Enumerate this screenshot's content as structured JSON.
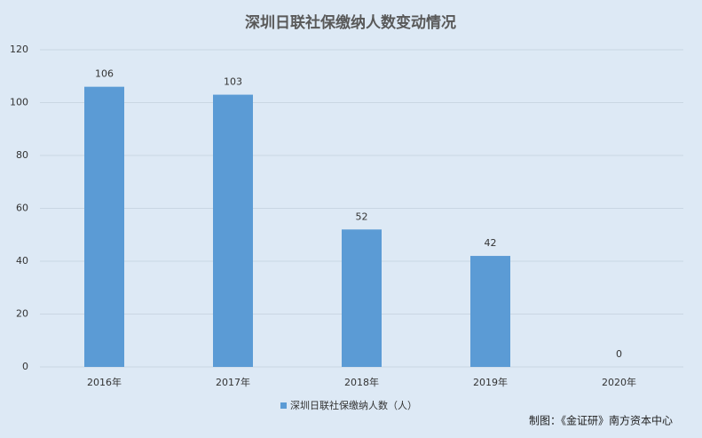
{
  "chart_data": {
    "type": "bar",
    "title": "深圳日联社保缴纳人数变动情况",
    "categories": [
      "2016年",
      "2017年",
      "2018年",
      "2019年",
      "2020年"
    ],
    "series": [
      {
        "name": "深圳日联社保缴纳人数（人）",
        "color": "#5b9bd5",
        "values": [
          106,
          103,
          52,
          42,
          0
        ]
      }
    ],
    "ylim": [
      0,
      120
    ],
    "yticks": [
      0,
      20,
      40,
      60,
      80,
      100,
      120
    ],
    "grid": true,
    "legend": "bottom",
    "data_labels": true,
    "source": "制图：《金证研》南方资本中心"
  }
}
